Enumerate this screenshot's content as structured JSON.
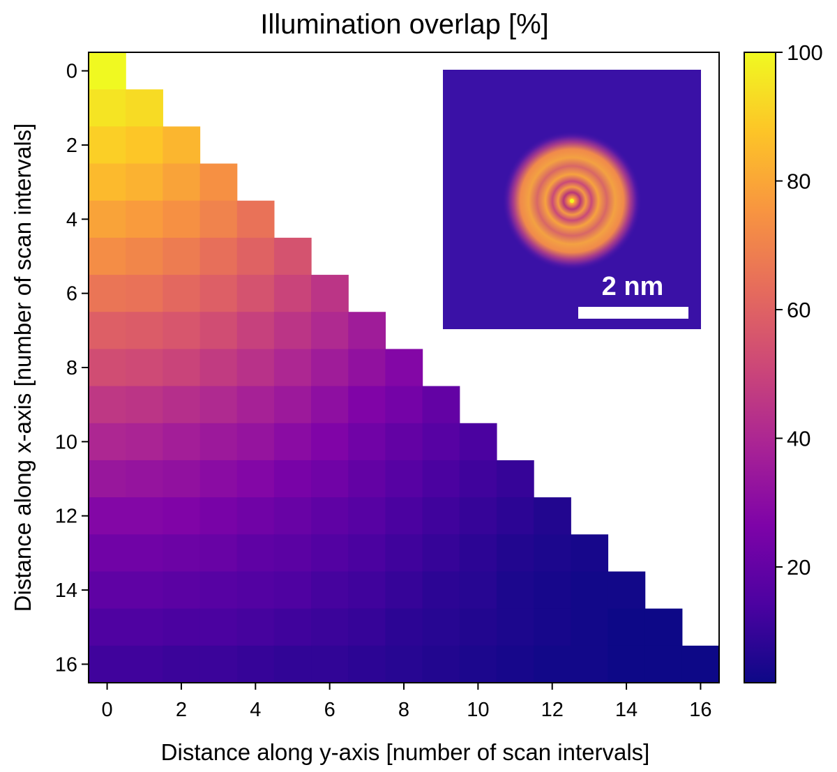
{
  "chart_data": {
    "type": "heatmap",
    "title": "Illumination overlap [%]",
    "xlabel": "Distance along y-axis [number of scan intervals]",
    "ylabel": "Distance along x-axis [number of scan intervals]",
    "x_ticks": [
      0,
      2,
      4,
      6,
      8,
      10,
      12,
      14,
      16
    ],
    "y_ticks": [
      0,
      2,
      4,
      6,
      8,
      10,
      12,
      14,
      16
    ],
    "xlim": [
      -0.5,
      16.5
    ],
    "ylim": [
      16.5,
      -0.5
    ],
    "grid_size": 17,
    "mask": "lower-triangle (y-axis distance <= x-axis distance)",
    "colormap": "plasma",
    "colorbar": {
      "range": [
        2,
        100
      ],
      "ticks": [
        20,
        40,
        60,
        80,
        100
      ],
      "placement": "right"
    },
    "values": [
      [
        100
      ],
      [
        95,
        93
      ],
      [
        90,
        88,
        84
      ],
      [
        85,
        83,
        79,
        74
      ],
      [
        79,
        77,
        74,
        70,
        65
      ],
      [
        73,
        71,
        68,
        64,
        60,
        55
      ],
      [
        66,
        65,
        62,
        59,
        55,
        50,
        45
      ],
      [
        59,
        58,
        56,
        53,
        49,
        45,
        41,
        36
      ],
      [
        53,
        52,
        50,
        47,
        44,
        40,
        36,
        32,
        28
      ],
      [
        46,
        45,
        43,
        41,
        38,
        35,
        31,
        27,
        24,
        20
      ],
      [
        40,
        39,
        37,
        35,
        33,
        30,
        27,
        23,
        20,
        17,
        14
      ],
      [
        34,
        33,
        32,
        30,
        28,
        25,
        23,
        20,
        17,
        14,
        12,
        10
      ],
      [
        28,
        28,
        27,
        25,
        23,
        21,
        19,
        17,
        14,
        12,
        10,
        8,
        6
      ],
      [
        23,
        23,
        22,
        21,
        19,
        18,
        16,
        14,
        12,
        10,
        8,
        6,
        5,
        4
      ],
      [
        19,
        19,
        18,
        17,
        16,
        15,
        13,
        12,
        10,
        8,
        7,
        5,
        4,
        3,
        3
      ],
      [
        15,
        15,
        14,
        14,
        13,
        12,
        11,
        10,
        8,
        7,
        6,
        5,
        4,
        3,
        2,
        2
      ],
      [
        12,
        12,
        11,
        11,
        10,
        9,
        9,
        8,
        7,
        6,
        5,
        4,
        3,
        3,
        2,
        2,
        2
      ]
    ],
    "inset": {
      "description_kind": "probe-intensity-image",
      "colormap": "plasma",
      "scalebar_label": "2 nm"
    }
  }
}
